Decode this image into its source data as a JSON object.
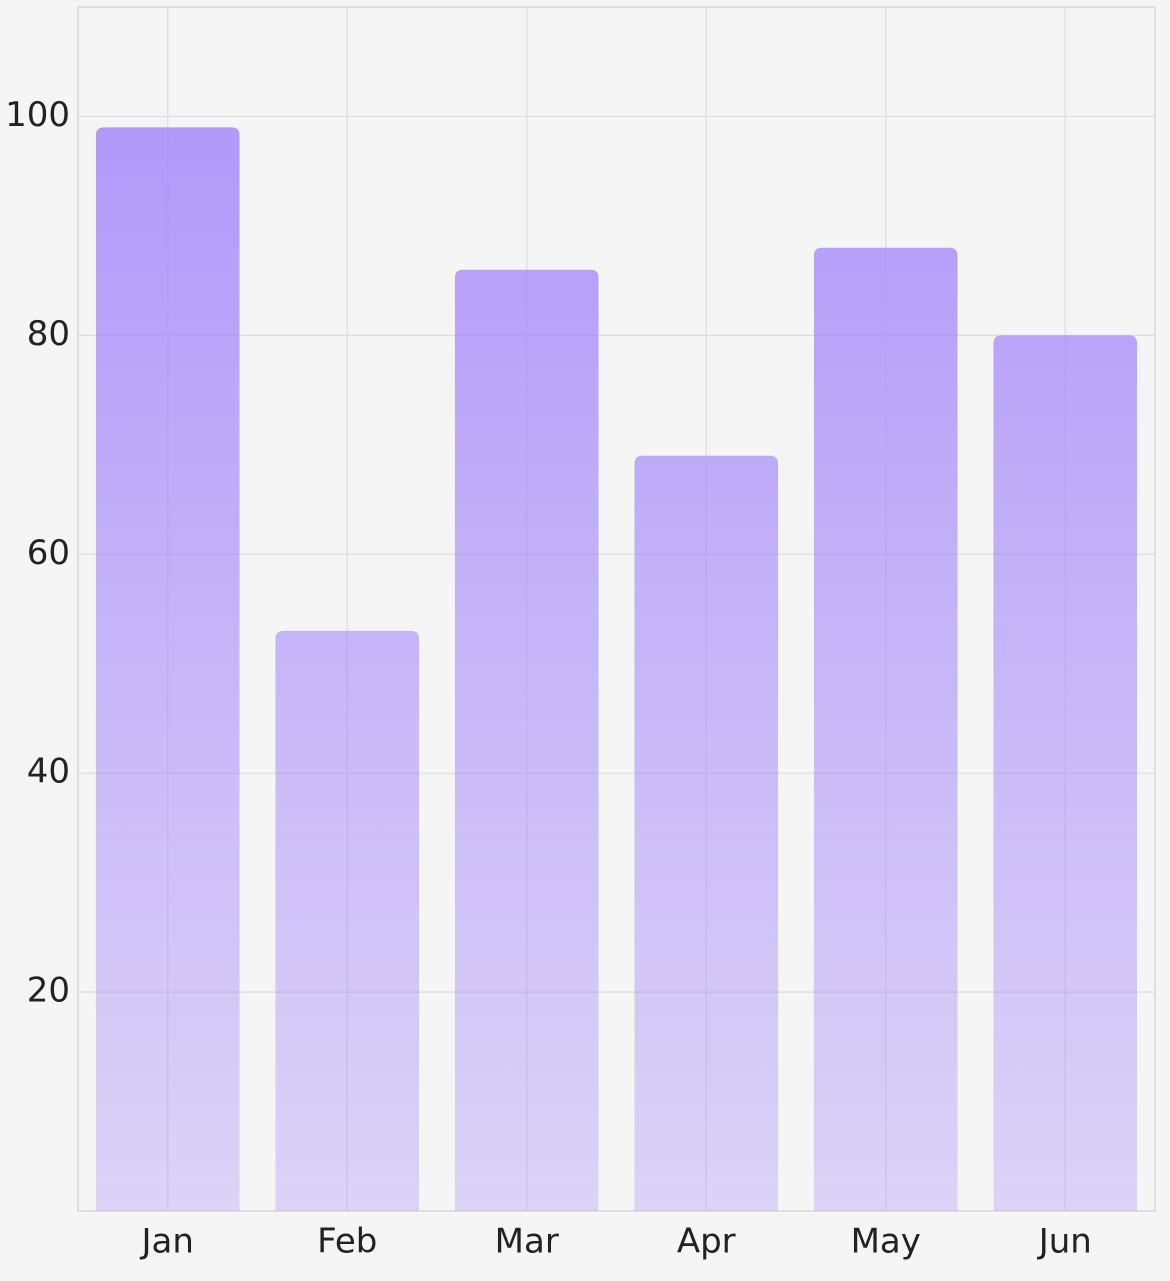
{
  "chart_data": {
    "type": "bar",
    "categories": [
      "Jan",
      "Feb",
      "Mar",
      "Apr",
      "May",
      "Jun"
    ],
    "values": [
      99,
      53,
      86,
      69,
      88,
      80
    ],
    "color": "#a78bfa",
    "ylim": [
      0,
      110
    ],
    "yticks": [
      20,
      40,
      60,
      80,
      100
    ],
    "grid": true
  }
}
